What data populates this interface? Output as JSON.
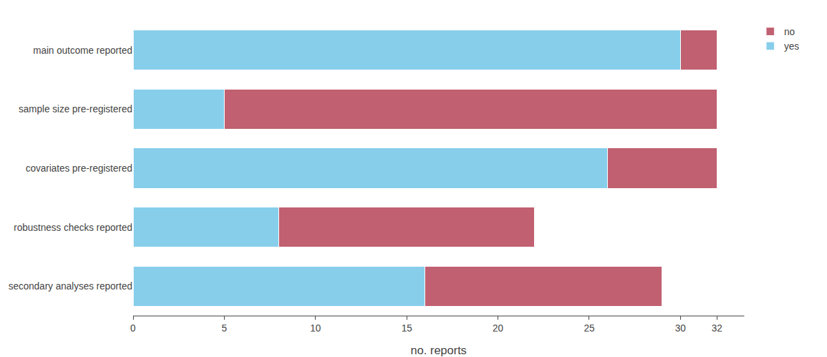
{
  "chart_data": {
    "type": "bar",
    "orientation": "horizontal",
    "stacked": true,
    "categories": [
      "main outcome reported",
      "sample size pre-registered",
      "covariates pre-registered",
      "robustness checks reported",
      "secondary analyses reported"
    ],
    "series": [
      {
        "name": "yes",
        "color": "#87CEEB",
        "values": [
          30,
          5,
          26,
          8,
          16
        ]
      },
      {
        "name": "no",
        "color": "#C06070",
        "values": [
          2,
          27,
          6,
          14,
          13
        ]
      }
    ],
    "xlabel": "no. reports",
    "xlim": [
      0,
      33.5
    ],
    "xticks": [
      0,
      5,
      10,
      15,
      20,
      25,
      30,
      32
    ],
    "grid": false,
    "legend": "right"
  }
}
